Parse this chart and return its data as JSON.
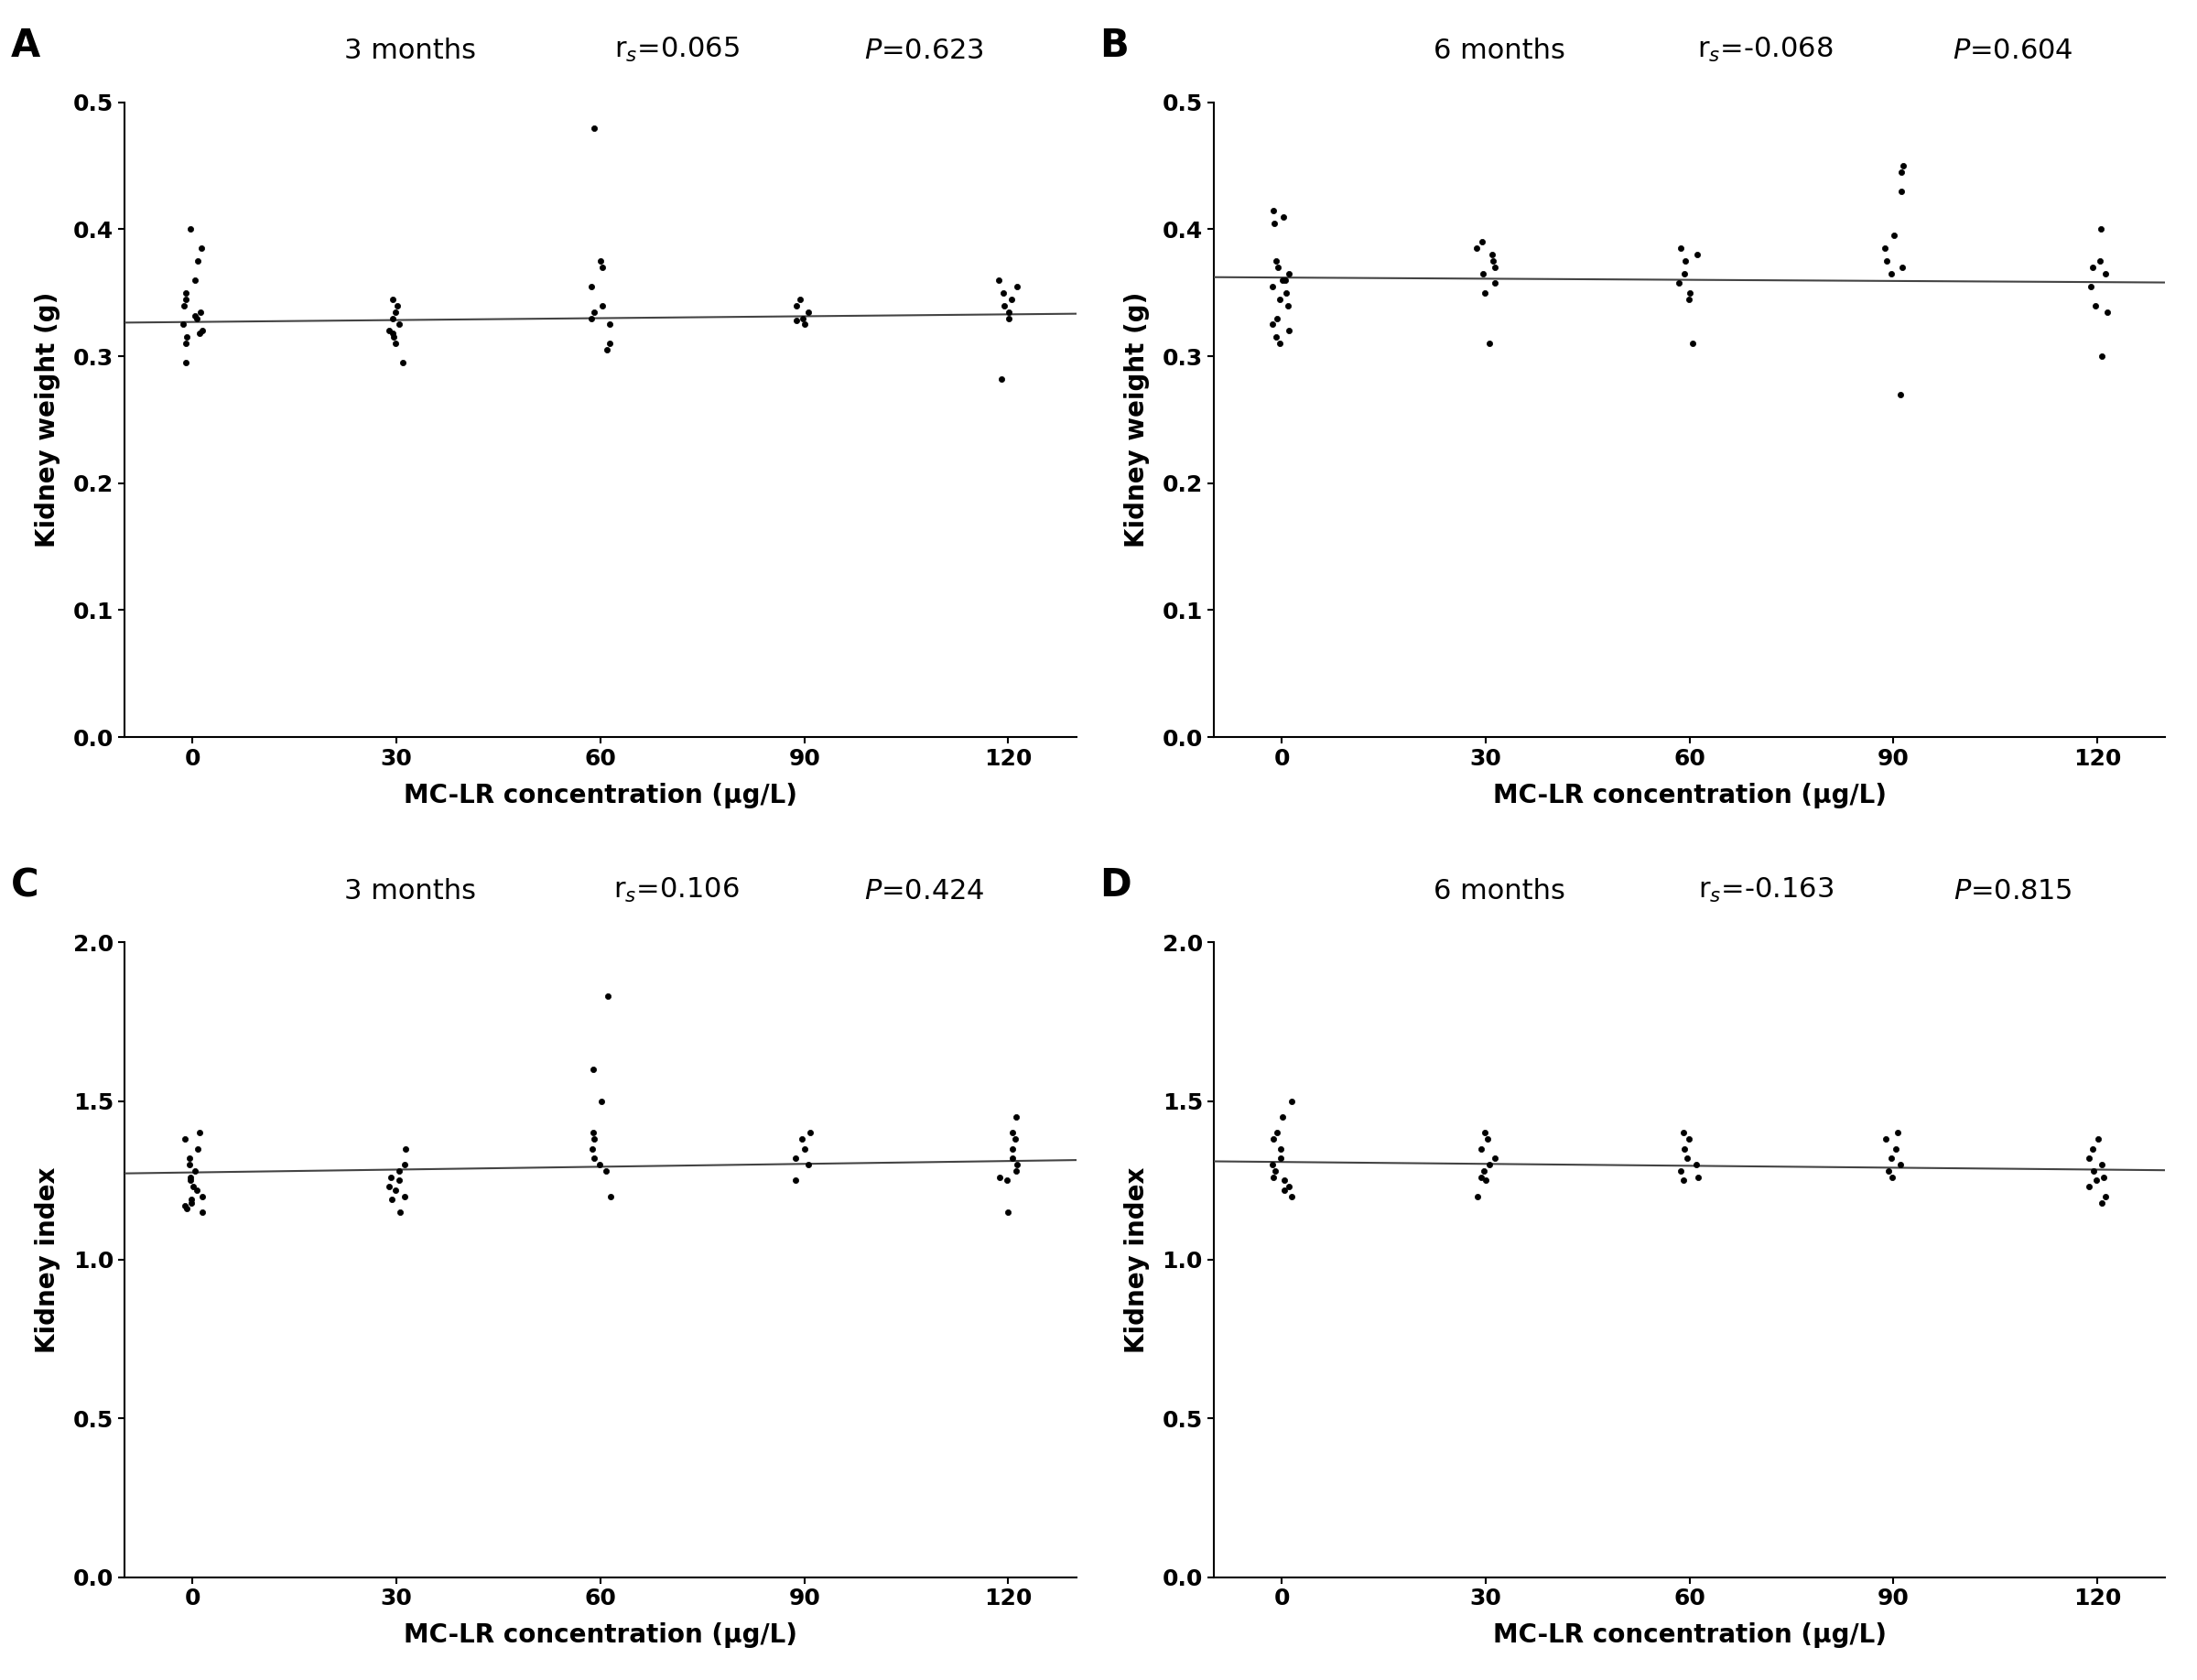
{
  "panels": [
    {
      "label": "A",
      "title_text": "3 months",
      "rs_text": "r$_s$=0.065",
      "p_text": "$P$=0.623",
      "ylabel": "Kidney weight (g)",
      "xlabel": "MC-LR concentration (μg/L)",
      "ylim": [
        0.0,
        0.5
      ],
      "yticks": [
        0.0,
        0.1,
        0.2,
        0.3,
        0.4,
        0.5
      ],
      "xticks": [
        0,
        30,
        60,
        90,
        120
      ],
      "line_slope": 5e-05,
      "line_intercept": 0.327,
      "data_x": [
        0,
        0,
        0,
        0,
        0,
        0,
        0,
        0,
        0,
        0,
        0,
        0,
        0,
        0,
        0,
        0,
        30,
        30,
        30,
        30,
        30,
        30,
        30,
        30,
        30,
        30,
        60,
        60,
        60,
        60,
        60,
        60,
        60,
        60,
        60,
        60,
        90,
        90,
        90,
        90,
        90,
        90,
        120,
        120,
        120,
        120,
        120,
        120,
        120,
        120
      ],
      "data_y": [
        0.4,
        0.385,
        0.375,
        0.36,
        0.35,
        0.345,
        0.34,
        0.335,
        0.332,
        0.33,
        0.325,
        0.32,
        0.318,
        0.315,
        0.31,
        0.295,
        0.345,
        0.34,
        0.335,
        0.33,
        0.325,
        0.32,
        0.318,
        0.315,
        0.31,
        0.295,
        0.48,
        0.375,
        0.37,
        0.355,
        0.34,
        0.335,
        0.33,
        0.325,
        0.31,
        0.305,
        0.345,
        0.34,
        0.335,
        0.33,
        0.328,
        0.325,
        0.36,
        0.355,
        0.35,
        0.345,
        0.34,
        0.335,
        0.33,
        0.282
      ]
    },
    {
      "label": "B",
      "title_text": "6 months",
      "rs_text": "r$_s$=-0.068",
      "p_text": "$P$=0.604",
      "ylabel": "Kidney weight (g)",
      "xlabel": "MC-LR concentration (μg/L)",
      "ylim": [
        0.0,
        0.5
      ],
      "yticks": [
        0.0,
        0.1,
        0.2,
        0.3,
        0.4,
        0.5
      ],
      "xticks": [
        0,
        30,
        60,
        90,
        120
      ],
      "line_slope": -3e-05,
      "line_intercept": 0.362,
      "data_x": [
        0,
        0,
        0,
        0,
        0,
        0,
        0,
        0,
        0,
        0,
        0,
        0,
        0,
        0,
        0,
        0,
        0,
        30,
        30,
        30,
        30,
        30,
        30,
        30,
        30,
        30,
        60,
        60,
        60,
        60,
        60,
        60,
        60,
        60,
        90,
        90,
        90,
        90,
        90,
        90,
        90,
        90,
        90,
        120,
        120,
        120,
        120,
        120,
        120,
        120,
        120
      ],
      "data_y": [
        0.415,
        0.41,
        0.405,
        0.375,
        0.37,
        0.365,
        0.36,
        0.36,
        0.355,
        0.35,
        0.345,
        0.34,
        0.33,
        0.325,
        0.32,
        0.315,
        0.31,
        0.39,
        0.385,
        0.38,
        0.375,
        0.37,
        0.365,
        0.358,
        0.35,
        0.31,
        0.385,
        0.38,
        0.375,
        0.365,
        0.358,
        0.35,
        0.345,
        0.31,
        0.45,
        0.445,
        0.43,
        0.395,
        0.385,
        0.375,
        0.37,
        0.365,
        0.27,
        0.4,
        0.375,
        0.37,
        0.365,
        0.355,
        0.34,
        0.335,
        0.3
      ]
    },
    {
      "label": "C",
      "title_text": "3 months",
      "rs_text": "r$_s$=0.106",
      "p_text": "$P$=0.424",
      "ylabel": "Kidney index",
      "xlabel": "MC-LR concentration (μg/L)",
      "ylim": [
        0.0,
        2.0
      ],
      "yticks": [
        0.0,
        0.5,
        1.0,
        1.5,
        2.0
      ],
      "xticks": [
        0,
        30,
        60,
        90,
        120
      ],
      "line_slope": 0.0003,
      "line_intercept": 1.275,
      "data_x": [
        0,
        0,
        0,
        0,
        0,
        0,
        0,
        0,
        0,
        0,
        0,
        0,
        0,
        0,
        0,
        0,
        30,
        30,
        30,
        30,
        30,
        30,
        30,
        30,
        30,
        30,
        60,
        60,
        60,
        60,
        60,
        60,
        60,
        60,
        60,
        60,
        90,
        90,
        90,
        90,
        90,
        90,
        120,
        120,
        120,
        120,
        120,
        120,
        120,
        120,
        120,
        120
      ],
      "data_y": [
        1.4,
        1.38,
        1.35,
        1.32,
        1.3,
        1.28,
        1.26,
        1.25,
        1.23,
        1.22,
        1.2,
        1.19,
        1.18,
        1.17,
        1.16,
        1.15,
        1.35,
        1.3,
        1.28,
        1.26,
        1.25,
        1.23,
        1.22,
        1.2,
        1.19,
        1.15,
        1.83,
        1.6,
        1.5,
        1.4,
        1.38,
        1.35,
        1.32,
        1.3,
        1.28,
        1.2,
        1.4,
        1.38,
        1.35,
        1.32,
        1.3,
        1.25,
        1.45,
        1.4,
        1.38,
        1.35,
        1.32,
        1.3,
        1.28,
        1.26,
        1.25,
        1.15
      ]
    },
    {
      "label": "D",
      "title_text": "6 months",
      "rs_text": "r$_s$=-0.163",
      "p_text": "$P$=0.815",
      "ylabel": "Kidney index",
      "xlabel": "MC-LR concentration (μg/L)",
      "ylim": [
        0.0,
        2.0
      ],
      "yticks": [
        0.0,
        0.5,
        1.0,
        1.5,
        2.0
      ],
      "xticks": [
        0,
        30,
        60,
        90,
        120
      ],
      "line_slope": -0.0002,
      "line_intercept": 1.308,
      "data_x": [
        0,
        0,
        0,
        0,
        0,
        0,
        0,
        0,
        0,
        0,
        0,
        0,
        0,
        30,
        30,
        30,
        30,
        30,
        30,
        30,
        30,
        30,
        60,
        60,
        60,
        60,
        60,
        60,
        60,
        60,
        90,
        90,
        90,
        90,
        90,
        90,
        90,
        120,
        120,
        120,
        120,
        120,
        120,
        120,
        120,
        120,
        120
      ],
      "data_y": [
        1.5,
        1.45,
        1.4,
        1.38,
        1.35,
        1.32,
        1.3,
        1.28,
        1.26,
        1.25,
        1.23,
        1.22,
        1.2,
        1.4,
        1.38,
        1.35,
        1.32,
        1.3,
        1.28,
        1.26,
        1.25,
        1.2,
        1.4,
        1.38,
        1.35,
        1.32,
        1.3,
        1.28,
        1.26,
        1.25,
        1.4,
        1.38,
        1.35,
        1.32,
        1.3,
        1.28,
        1.26,
        1.38,
        1.35,
        1.32,
        1.3,
        1.28,
        1.26,
        1.25,
        1.23,
        1.2,
        1.18
      ]
    }
  ],
  "dot_color": "#000000",
  "dot_size": 20,
  "line_color": "#444444",
  "line_width": 1.5,
  "background_color": "#ffffff",
  "panel_label_fontsize": 30,
  "title_fontsize": 22,
  "stats_fontsize": 22,
  "axis_label_fontsize": 20,
  "tick_fontsize": 18
}
